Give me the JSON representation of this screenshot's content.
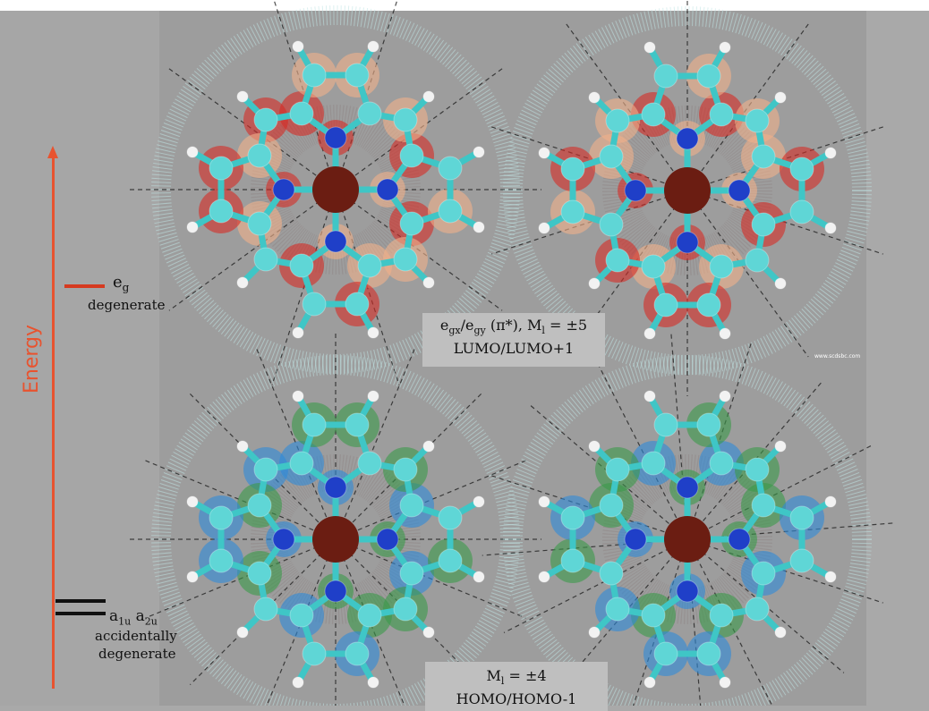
{
  "axis": {
    "label": "Energy",
    "color": "#e8532f"
  },
  "levels": [
    {
      "id": "eg",
      "label_main": "e",
      "label_sub": "g",
      "description": "degenerate",
      "color": "#d63a20"
    },
    {
      "id": "a",
      "label_parts": [
        {
          "main": "a",
          "sub": "1u"
        },
        {
          "main": "a",
          "sub": "2u"
        }
      ],
      "description_lines": [
        "accidentally",
        "degenerate"
      ],
      "color": "#111111"
    }
  ],
  "captions": {
    "top": {
      "line1_parts": [
        "e",
        "gx",
        "/e",
        "gy",
        "  (π*), M",
        "l",
        " = ±5"
      ],
      "line2": "LUMO/LUMO+1"
    },
    "bottom": {
      "line1_parts": [
        "M",
        "l",
        " = ±4"
      ],
      "line2": "HOMO/HOMO-1"
    }
  },
  "watermark": "www.scdsbc.com",
  "orbital_colors": {
    "lumo_positive": "#d62b24",
    "lumo_negative": "#f0b08a",
    "homo_positive": "#2f8ad8",
    "homo_negative": "#3a9a4a",
    "atom_carbon": "#5fd6d6",
    "atom_nitrogen": "#1f3fc8",
    "atom_metal": "#6b1d12",
    "atom_hydrogen": "#f2f2f2"
  },
  "panels": [
    {
      "id": "lumo-x",
      "title": "LUMO"
    },
    {
      "id": "lumo-y",
      "title": "LUMO+1"
    },
    {
      "id": "homo-a",
      "title": "HOMO"
    },
    {
      "id": "homo-b",
      "title": "HOMO-1"
    }
  ]
}
